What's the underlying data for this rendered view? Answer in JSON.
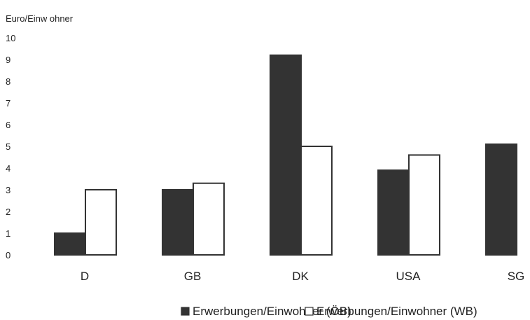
{
  "chart_data": {
    "type": "bar",
    "ylabel": "Euro/Einw ohner",
    "ylim": [
      0,
      10
    ],
    "yticks": [
      "0",
      "1",
      "2",
      "3",
      "4",
      "5",
      "6",
      "7",
      "8",
      "9",
      "10"
    ],
    "grid": false,
    "legend_position": "bottom",
    "categories": [
      "D",
      "GB",
      "DK",
      "USA",
      "SG"
    ],
    "series": [
      {
        "name": "Erwerbungen/Einwohner (ÖB)",
        "color": "#333333",
        "values": [
          1.0,
          3.0,
          9.2,
          3.9,
          5.1
        ]
      },
      {
        "name": "Erwerbungen/Einwohner (WB)",
        "color": "#ffffff",
        "values": [
          3.0,
          3.3,
          5.0,
          4.6,
          null
        ]
      }
    ]
  }
}
